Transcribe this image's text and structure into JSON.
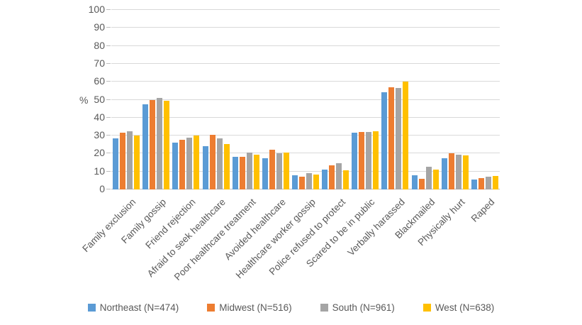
{
  "chart_data": {
    "type": "bar",
    "title": "",
    "ylabel": "%",
    "xlabel": "",
    "ylim": [
      0,
      100
    ],
    "yticks": [
      0,
      10,
      20,
      30,
      40,
      50,
      60,
      70,
      80,
      90,
      100
    ],
    "grid": true,
    "legend_position": "bottom",
    "categories": [
      "Family exclusion",
      "Family gossip",
      "Friend rejection",
      "Afraid to seek healthcare",
      "Poor healthcare treatment",
      "Avoided healthcare",
      "Healthcare worker gossip",
      "Police refused to protect",
      "Scared to be in public",
      "Verbally harassed",
      "Blackmailed",
      "Physically hurt",
      "Raped"
    ],
    "series": [
      {
        "name": "Northeast (N=474)",
        "color": "#5b9bd5",
        "values": [
          28.5,
          47.5,
          26,
          24,
          18,
          17.5,
          8,
          11,
          31.5,
          54,
          8,
          17.5,
          5.5
        ]
      },
      {
        "name": "Midwest (N=516)",
        "color": "#ed7d31",
        "values": [
          31.5,
          50,
          27.5,
          30.5,
          18,
          22,
          7,
          13.5,
          32,
          57,
          6,
          20,
          6.5
        ]
      },
      {
        "name": "South (N=961)",
        "color": "#a5a5a5",
        "values": [
          32.5,
          51,
          29,
          28.5,
          20.5,
          20,
          9,
          14.5,
          32,
          56.5,
          12.5,
          19.5,
          7
        ]
      },
      {
        "name": "West (N=638)",
        "color": "#ffc000",
        "values": [
          30,
          49.5,
          30,
          25.5,
          19.5,
          20.5,
          8.5,
          10.5,
          32.5,
          60,
          11,
          19,
          7.5
        ]
      }
    ]
  }
}
